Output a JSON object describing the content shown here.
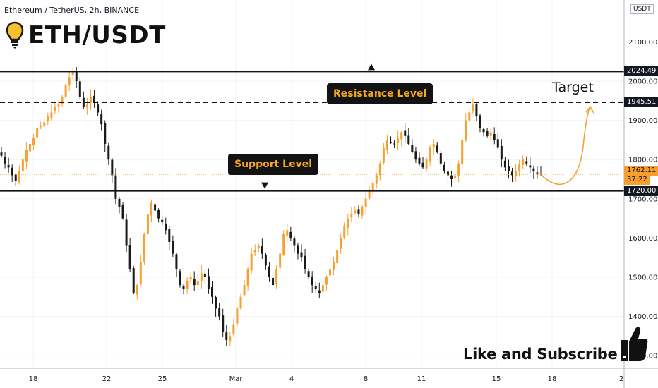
{
  "header": {
    "symbol_line": "Ethereum / TetherUS, 2h, BINANCE",
    "title": "ETH/USDT",
    "currency": "USDT"
  },
  "annotations": {
    "resistance_label": "Resistance Level",
    "support_label": "Support Level",
    "target_label": "Target",
    "cta": "Like and Subscribe"
  },
  "price_labels": {
    "resistance": "2024.49",
    "target": "1945.51",
    "current": "1762.11",
    "countdown": "37:22",
    "support": "1720.00"
  },
  "colors": {
    "up": "#f7a030",
    "down": "#1a1a1a",
    "callout_text": "#f5a623",
    "callout_bg": "#131313",
    "arrow": "#f5a030"
  },
  "chart_data": {
    "type": "candlestick",
    "title": "ETH/USDT",
    "subtitle": "Ethereum / TetherUS, 2h, BINANCE",
    "ylim": [
      1280,
      2180
    ],
    "yticks": [
      1300,
      1400,
      1500,
      1600,
      1700,
      1800,
      1900,
      2000,
      2100
    ],
    "xticks": [
      "18",
      "22",
      "25",
      "Mar",
      "4",
      "8",
      "11",
      "15",
      "18",
      "2"
    ],
    "levels": [
      {
        "name": "Resistance Level",
        "price": 2024.49,
        "style": "solid"
      },
      {
        "name": "Target",
        "price": 1945.51,
        "style": "dashed"
      },
      {
        "name": "Support Level",
        "price": 1720.0,
        "style": "solid"
      }
    ],
    "current_price": 1762.11,
    "close_path": [
      1810,
      1790,
      1780,
      1760,
      1745,
      1770,
      1800,
      1825,
      1840,
      1855,
      1880,
      1885,
      1895,
      1910,
      1920,
      1935,
      1940,
      1960,
      1990,
      2010,
      2025,
      2000,
      1960,
      1935,
      1940,
      1960,
      1945,
      1920,
      1890,
      1840,
      1800,
      1760,
      1700,
      1680,
      1650,
      1580,
      1520,
      1460,
      1480,
      1540,
      1610,
      1660,
      1690,
      1670,
      1650,
      1640,
      1620,
      1590,
      1560,
      1520,
      1480,
      1470,
      1490,
      1500,
      1480,
      1490,
      1510,
      1500,
      1470,
      1450,
      1420,
      1400,
      1360,
      1340,
      1350,
      1380,
      1420,
      1450,
      1480,
      1520,
      1560,
      1570,
      1580,
      1560,
      1530,
      1500,
      1480,
      1520,
      1560,
      1610,
      1620,
      1600,
      1580,
      1560,
      1550,
      1520,
      1500,
      1480,
      1470,
      1460,
      1480,
      1500,
      1520,
      1540,
      1570,
      1600,
      1630,
      1650,
      1660,
      1670,
      1660,
      1680,
      1700,
      1720,
      1740,
      1760,
      1790,
      1830,
      1850,
      1845,
      1840,
      1855,
      1870,
      1860,
      1840,
      1820,
      1800,
      1790,
      1780,
      1800,
      1830,
      1840,
      1820,
      1790,
      1770,
      1760,
      1750,
      1760,
      1790,
      1850,
      1900,
      1920,
      1940,
      1910,
      1880,
      1870,
      1860,
      1870,
      1850,
      1830,
      1800,
      1780,
      1770,
      1760,
      1770,
      1790,
      1800,
      1790,
      1780,
      1770,
      1765,
      1762
    ]
  }
}
